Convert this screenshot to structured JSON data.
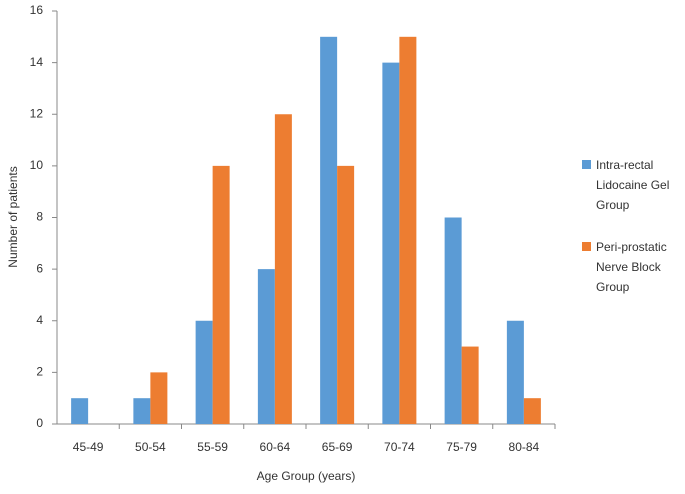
{
  "chart_data": {
    "type": "bar",
    "x_label": "Age Group (years)",
    "y_label": "Number of patients",
    "categories": [
      "45-49",
      "50-54",
      "55-59",
      "60-64",
      "65-69",
      "70-74",
      "75-79",
      "80-84"
    ],
    "series": [
      {
        "name": "Intra-rectal Lidocaine Gel Group",
        "color": "#5b9bd5",
        "values": [
          1,
          1,
          4,
          6,
          15,
          14,
          8,
          4
        ]
      },
      {
        "name": "Peri-prostatic Nerve Block Group",
        "color": "#ed7d31",
        "values": [
          0,
          2,
          10,
          12,
          10,
          15,
          3,
          1
        ]
      }
    ],
    "ylim": [
      0,
      16
    ],
    "yticks": [
      0,
      2,
      4,
      6,
      8,
      10,
      12,
      14,
      16
    ],
    "grid": false,
    "legend": "right"
  }
}
